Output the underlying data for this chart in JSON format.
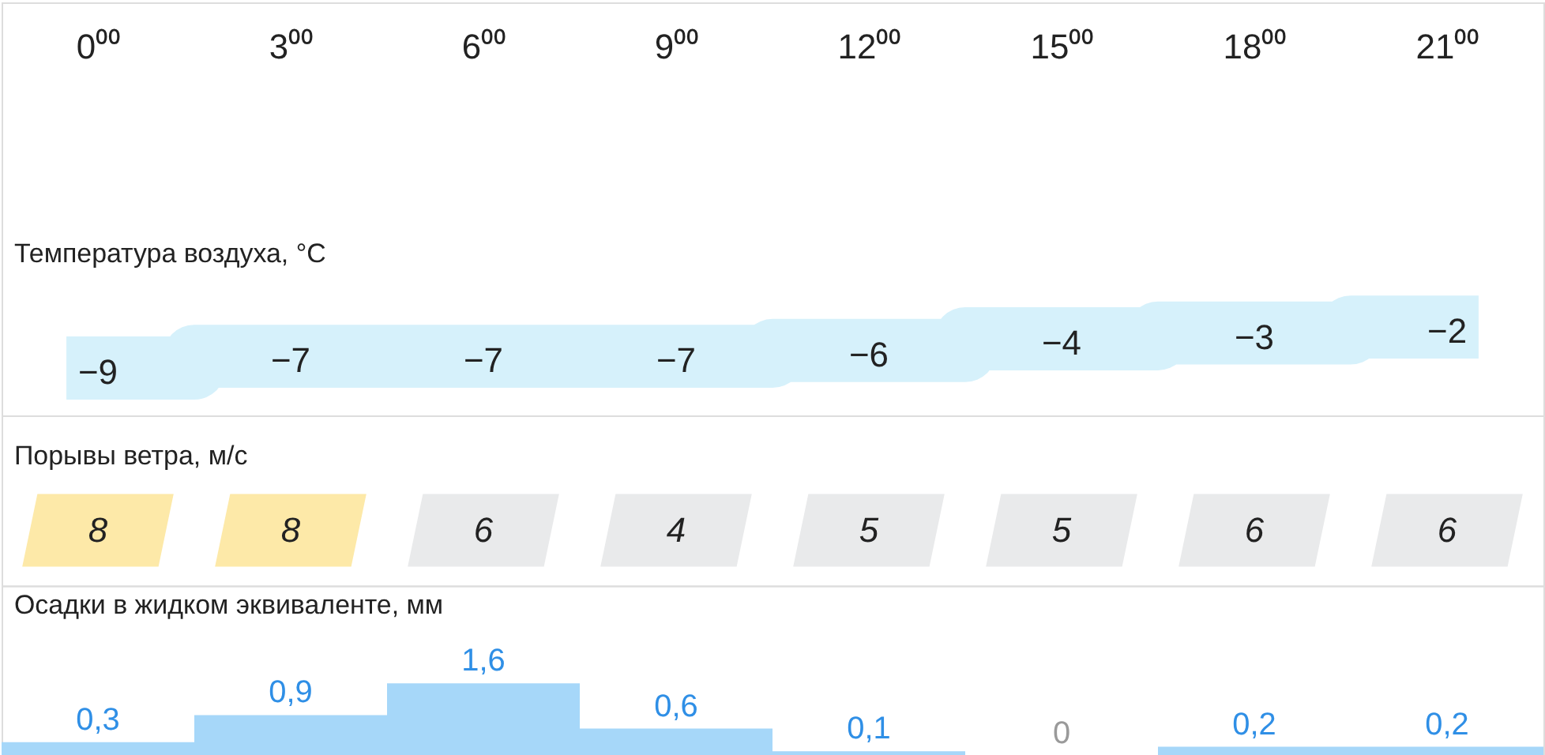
{
  "chart_data": [
    {
      "type": "step",
      "title": "Температура воздуха, °C",
      "categories": [
        "0⁰⁰",
        "3⁰⁰",
        "6⁰⁰",
        "9⁰⁰",
        "12⁰⁰",
        "15⁰⁰",
        "18⁰⁰",
        "21⁰⁰"
      ],
      "values": [
        -9,
        -7,
        -7,
        -7,
        -6,
        -4,
        -3,
        -2
      ],
      "value_labels": [
        "−9",
        "−7",
        "−7",
        "−7",
        "−6",
        "−4",
        "−3",
        "−2"
      ],
      "color": "#d6f1fb",
      "tick_labels": "x"
    },
    {
      "type": "heatmap",
      "title": "Порывы ветра, м/с",
      "categories": [
        null,
        null,
        null,
        null,
        null,
        null,
        null,
        null
      ],
      "y_categories": [
        null
      ],
      "cells": [
        [
          8,
          8,
          6,
          4,
          5,
          5,
          6,
          6
        ]
      ],
      "colors": [
        "#fde9a8",
        "#fde9a8",
        "#e9eaeb",
        "#e9eaeb",
        "#e9eaeb",
        "#e9eaeb",
        "#e9eaeb",
        "#e9eaeb"
      ],
      "data_labels": true,
      "tick_labels": false
    },
    {
      "type": "bar",
      "title": "Осадки в жидком эквиваленте, мм",
      "categories": [
        null,
        null,
        null,
        null,
        null,
        null,
        null,
        null
      ],
      "values": [
        0.3,
        0.9,
        1.6,
        0.6,
        0.1,
        0,
        0.2,
        0.2
      ],
      "value_labels": [
        "0,3",
        "0,9",
        "1,6",
        "0,6",
        "0,1",
        "0",
        "0,2",
        "0,2"
      ],
      "color": "#a6d7f9",
      "tick_labels": false
    }
  ]
}
